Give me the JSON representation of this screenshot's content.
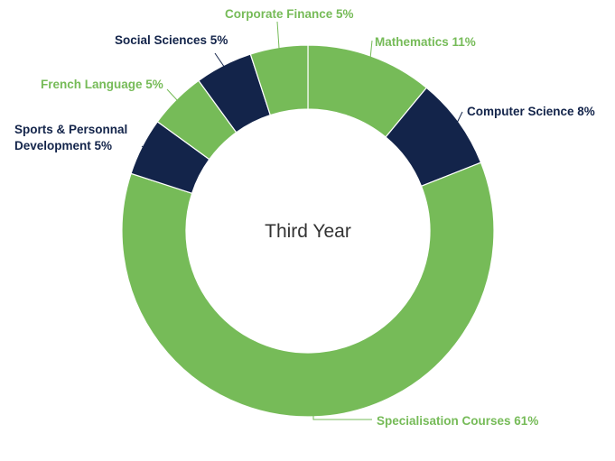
{
  "chart_data": {
    "type": "pie",
    "center_label": "Third Year",
    "slices": [
      {
        "name": "Mathematics",
        "value": 11,
        "label": "Mathematics 11%",
        "color": "#76bb58",
        "label_color": "#76bb58"
      },
      {
        "name": "Computer Science",
        "value": 8,
        "label": "Computer Science 8%",
        "color": "#13244a",
        "label_color": "#13244a"
      },
      {
        "name": "Specialisation Courses",
        "value": 61,
        "label": "Specialisation Courses 61%",
        "color": "#76bb58",
        "label_color": "#76bb58"
      },
      {
        "name": "Sports & Personnal Development",
        "value": 5,
        "label": "Sports & Personnal",
        "label_line2": "Development 5%",
        "color": "#13244a",
        "label_color": "#13244a"
      },
      {
        "name": "French Language",
        "value": 5,
        "label": "French Language 5%",
        "color": "#76bb58",
        "label_color": "#76bb58"
      },
      {
        "name": "Social Sciences",
        "value": 5,
        "label": "Social Sciences 5%",
        "color": "#13244a",
        "label_color": "#13244a"
      },
      {
        "name": "Corporate Finance",
        "value": 5,
        "label": "Corporate Finance 5%",
        "color": "#76bb58",
        "label_color": "#76bb58"
      }
    ]
  }
}
